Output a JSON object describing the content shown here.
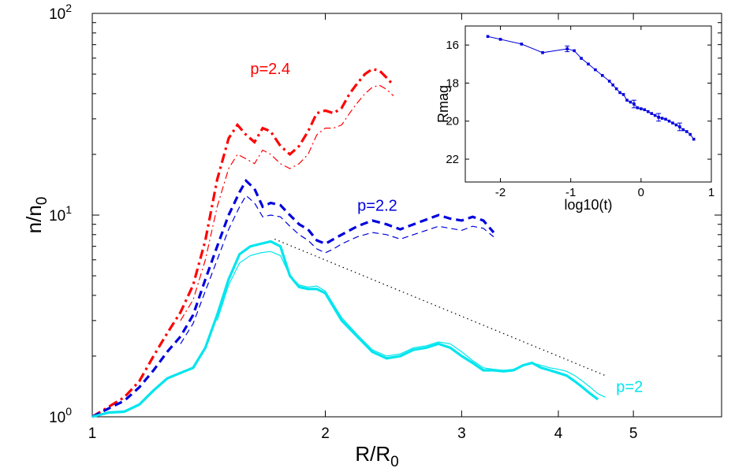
{
  "chart_data": [
    {
      "type": "line",
      "xlabel": {
        "main": "R/R",
        "sub": "0"
      },
      "ylabel": {
        "main": "n/n",
        "sub": "0"
      },
      "xscale": "log",
      "yscale": "log",
      "xlim": [
        1,
        6.5
      ],
      "ylim": [
        1,
        100
      ],
      "grid": false,
      "xticks": [
        1,
        2,
        3,
        4,
        5
      ],
      "yticks": [
        {
          "value": 1,
          "base": "10",
          "exp": "0"
        },
        {
          "value": 10,
          "base": "10",
          "exp": "1"
        },
        {
          "value": 100,
          "base": "10",
          "exp": "2"
        }
      ],
      "series": [
        {
          "label": "p=2.4",
          "label_at": [
            1.6,
            50
          ],
          "color": "#ff0000",
          "style": "dashdot",
          "thick": [
            [
              1.0,
              1.0
            ],
            [
              1.05,
              1.12
            ],
            [
              1.1,
              1.25
            ],
            [
              1.15,
              1.5
            ],
            [
              1.2,
              2.0
            ],
            [
              1.25,
              2.6
            ],
            [
              1.3,
              3.3
            ],
            [
              1.35,
              4.5
            ],
            [
              1.4,
              7.5
            ],
            [
              1.45,
              15
            ],
            [
              1.5,
              24
            ],
            [
              1.54,
              28
            ],
            [
              1.58,
              25
            ],
            [
              1.62,
              23
            ],
            [
              1.66,
              27
            ],
            [
              1.7,
              26
            ],
            [
              1.75,
              22
            ],
            [
              1.8,
              20
            ],
            [
              1.85,
              22
            ],
            [
              1.9,
              26
            ],
            [
              1.95,
              32
            ],
            [
              2.0,
              33
            ],
            [
              2.05,
              32
            ],
            [
              2.1,
              34
            ],
            [
              2.15,
              40
            ],
            [
              2.2,
              45
            ],
            [
              2.25,
              50
            ],
            [
              2.3,
              53
            ],
            [
              2.35,
              52
            ],
            [
              2.4,
              48
            ],
            [
              2.45,
              44
            ]
          ],
          "thin": [
            [
              1.3,
              3.0
            ],
            [
              1.35,
              3.8
            ],
            [
              1.4,
              6.0
            ],
            [
              1.45,
              11
            ],
            [
              1.5,
              17
            ],
            [
              1.54,
              20
            ],
            [
              1.58,
              19
            ],
            [
              1.62,
              18
            ],
            [
              1.66,
              21
            ],
            [
              1.7,
              20
            ],
            [
              1.75,
              18
            ],
            [
              1.8,
              17
            ],
            [
              1.85,
              18
            ],
            [
              1.9,
              20
            ],
            [
              1.95,
              25
            ],
            [
              2.0,
              27
            ],
            [
              2.05,
              27
            ],
            [
              2.1,
              28
            ],
            [
              2.15,
              32
            ],
            [
              2.2,
              36
            ],
            [
              2.25,
              40
            ],
            [
              2.3,
              43
            ],
            [
              2.35,
              44
            ],
            [
              2.4,
              42
            ],
            [
              2.45,
              39
            ]
          ]
        },
        {
          "label": "p=2.2",
          "label_at": [
            2.2,
            10.5
          ],
          "color": "#0000dd",
          "style": "dashed",
          "thick": [
            [
              1.0,
              1.0
            ],
            [
              1.05,
              1.1
            ],
            [
              1.1,
              1.2
            ],
            [
              1.15,
              1.4
            ],
            [
              1.2,
              1.7
            ],
            [
              1.25,
              2.1
            ],
            [
              1.3,
              2.5
            ],
            [
              1.35,
              3.2
            ],
            [
              1.4,
              4.8
            ],
            [
              1.45,
              7.0
            ],
            [
              1.5,
              10
            ],
            [
              1.55,
              13
            ],
            [
              1.58,
              14.8
            ],
            [
              1.62,
              13.5
            ],
            [
              1.66,
              11
            ],
            [
              1.7,
              11.5
            ],
            [
              1.75,
              11.2
            ],
            [
              1.8,
              10
            ],
            [
              1.85,
              9.0
            ],
            [
              1.9,
              8.5
            ],
            [
              1.95,
              7.5
            ],
            [
              2.0,
              7.2
            ],
            [
              2.05,
              7.6
            ],
            [
              2.1,
              8.0
            ],
            [
              2.2,
              8.8
            ],
            [
              2.3,
              9.4
            ],
            [
              2.4,
              9.0
            ],
            [
              2.5,
              8.5
            ],
            [
              2.6,
              9.0
            ],
            [
              2.7,
              9.5
            ],
            [
              2.8,
              10.0
            ],
            [
              2.9,
              9.6
            ],
            [
              3.0,
              9.4
            ],
            [
              3.1,
              9.8
            ],
            [
              3.2,
              9.4
            ],
            [
              3.3,
              8.2
            ]
          ],
          "thin": [
            [
              1.3,
              2.3
            ],
            [
              1.35,
              2.9
            ],
            [
              1.4,
              4.2
            ],
            [
              1.45,
              6.0
            ],
            [
              1.5,
              8.5
            ],
            [
              1.55,
              11
            ],
            [
              1.58,
              12.5
            ],
            [
              1.62,
              11.5
            ],
            [
              1.66,
              9.8
            ],
            [
              1.7,
              10
            ],
            [
              1.75,
              9.8
            ],
            [
              1.8,
              8.8
            ],
            [
              1.85,
              8.0
            ],
            [
              1.9,
              7.5
            ],
            [
              1.95,
              6.8
            ],
            [
              2.0,
              6.5
            ],
            [
              2.05,
              6.8
            ],
            [
              2.1,
              7.2
            ],
            [
              2.2,
              7.8
            ],
            [
              2.3,
              8.2
            ],
            [
              2.4,
              8.0
            ],
            [
              2.5,
              7.6
            ],
            [
              2.6,
              8.0
            ],
            [
              2.7,
              8.4
            ],
            [
              2.8,
              8.8
            ],
            [
              2.9,
              8.6
            ],
            [
              3.0,
              8.4
            ],
            [
              3.1,
              8.8
            ],
            [
              3.2,
              8.6
            ],
            [
              3.3,
              7.8
            ]
          ]
        },
        {
          "label": "p=2",
          "label_at": [
            4.75,
            1.33
          ],
          "color": "#00e5ee",
          "style": "solid",
          "thick": [
            [
              1.0,
              1.0
            ],
            [
              1.05,
              1.05
            ],
            [
              1.1,
              1.06
            ],
            [
              1.15,
              1.15
            ],
            [
              1.2,
              1.35
            ],
            [
              1.25,
              1.55
            ],
            [
              1.3,
              1.65
            ],
            [
              1.35,
              1.75
            ],
            [
              1.4,
              2.2
            ],
            [
              1.45,
              3.2
            ],
            [
              1.5,
              4.8
            ],
            [
              1.55,
              6.4
            ],
            [
              1.6,
              7.0
            ],
            [
              1.65,
              7.2
            ],
            [
              1.7,
              7.4
            ],
            [
              1.75,
              7.0
            ],
            [
              1.8,
              5.0
            ],
            [
              1.85,
              4.4
            ],
            [
              1.9,
              4.3
            ],
            [
              1.95,
              4.3
            ],
            [
              2.0,
              4.1
            ],
            [
              2.05,
              3.5
            ],
            [
              2.1,
              3.0
            ],
            [
              2.2,
              2.5
            ],
            [
              2.3,
              2.1
            ],
            [
              2.4,
              1.95
            ],
            [
              2.5,
              2.0
            ],
            [
              2.6,
              2.15
            ],
            [
              2.7,
              2.2
            ],
            [
              2.8,
              2.3
            ],
            [
              2.9,
              2.2
            ],
            [
              3.0,
              2.0
            ],
            [
              3.1,
              1.85
            ],
            [
              3.2,
              1.7
            ],
            [
              3.3,
              1.7
            ],
            [
              3.4,
              1.68
            ],
            [
              3.5,
              1.7
            ],
            [
              3.6,
              1.8
            ],
            [
              3.7,
              1.85
            ],
            [
              3.8,
              1.75
            ],
            [
              3.9,
              1.7
            ],
            [
              4.0,
              1.65
            ],
            [
              4.1,
              1.6
            ],
            [
              4.2,
              1.5
            ],
            [
              4.3,
              1.4
            ],
            [
              4.4,
              1.3
            ],
            [
              4.5,
              1.22
            ]
          ],
          "thin": [
            [
              1.45,
              3.0
            ],
            [
              1.5,
              4.5
            ],
            [
              1.55,
              5.8
            ],
            [
              1.6,
              6.3
            ],
            [
              1.65,
              6.5
            ],
            [
              1.7,
              6.6
            ],
            [
              1.75,
              6.3
            ],
            [
              1.8,
              5.0
            ],
            [
              1.85,
              4.5
            ],
            [
              1.9,
              4.4
            ],
            [
              1.95,
              4.45
            ],
            [
              2.0,
              4.2
            ],
            [
              2.05,
              3.6
            ],
            [
              2.1,
              3.1
            ],
            [
              2.2,
              2.55
            ],
            [
              2.3,
              2.15
            ],
            [
              2.4,
              2.0
            ],
            [
              2.5,
              2.05
            ],
            [
              2.6,
              2.2
            ],
            [
              2.7,
              2.25
            ],
            [
              2.8,
              2.35
            ],
            [
              2.9,
              2.3
            ],
            [
              3.0,
              2.1
            ],
            [
              3.1,
              1.9
            ],
            [
              3.2,
              1.75
            ],
            [
              3.3,
              1.72
            ],
            [
              3.4,
              1.7
            ],
            [
              3.5,
              1.72
            ],
            [
              3.6,
              1.8
            ],
            [
              3.7,
              1.85
            ],
            [
              3.8,
              1.8
            ],
            [
              3.9,
              1.75
            ],
            [
              4.0,
              1.72
            ],
            [
              4.1,
              1.68
            ],
            [
              4.2,
              1.6
            ],
            [
              4.3,
              1.5
            ],
            [
              4.4,
              1.4
            ],
            [
              4.5,
              1.3
            ],
            [
              4.6,
              1.25
            ]
          ]
        }
      ],
      "reference_line": {
        "style": "dotted",
        "color": "#000000",
        "points": [
          [
            1.72,
            7.6
          ],
          [
            4.6,
            1.6
          ]
        ]
      }
    },
    {
      "type": "scatter",
      "placement": "inset-top-right",
      "xlabel": "log10(t)",
      "ylabel": "Rmag",
      "xlim": [
        -2.5,
        1.0
      ],
      "ylim": [
        23.2,
        15.0
      ],
      "y_reversed": true,
      "xticks": [
        -2,
        -1,
        0,
        1
      ],
      "yticks": [
        16,
        18,
        20,
        22
      ],
      "color": "#0000dd",
      "points": [
        [
          -2.18,
          15.55
        ],
        [
          -2.0,
          15.7
        ],
        [
          -1.7,
          15.95
        ],
        [
          -1.4,
          16.4
        ],
        [
          -1.05,
          16.2
        ],
        [
          -0.95,
          16.3
        ],
        [
          -0.85,
          16.7
        ],
        [
          -0.75,
          17.0
        ],
        [
          -0.65,
          17.3
        ],
        [
          -0.55,
          17.6
        ],
        [
          -0.45,
          17.9
        ],
        [
          -0.4,
          18.1
        ],
        [
          -0.35,
          18.3
        ],
        [
          -0.3,
          18.5
        ],
        [
          -0.25,
          18.6
        ],
        [
          -0.2,
          18.9
        ],
        [
          -0.15,
          19.0
        ],
        [
          -0.1,
          19.1
        ],
        [
          -0.05,
          19.3
        ],
        [
          0.0,
          19.35
        ],
        [
          0.05,
          19.4
        ],
        [
          0.1,
          19.5
        ],
        [
          0.15,
          19.6
        ],
        [
          0.2,
          19.7
        ],
        [
          0.25,
          19.8
        ],
        [
          0.3,
          19.85
        ],
        [
          0.35,
          19.9
        ],
        [
          0.4,
          20.0
        ],
        [
          0.45,
          20.1
        ],
        [
          0.5,
          20.2
        ],
        [
          0.55,
          20.3
        ],
        [
          0.6,
          20.45
        ],
        [
          0.65,
          20.55
        ],
        [
          0.7,
          20.7
        ],
        [
          0.75,
          20.95
        ]
      ],
      "error_points": [
        [
          -1.05,
          16.2,
          0.15
        ],
        [
          -0.1,
          19.1,
          0.2
        ],
        [
          0.25,
          19.8,
          0.2
        ],
        [
          0.55,
          20.3,
          0.2
        ]
      ]
    }
  ]
}
